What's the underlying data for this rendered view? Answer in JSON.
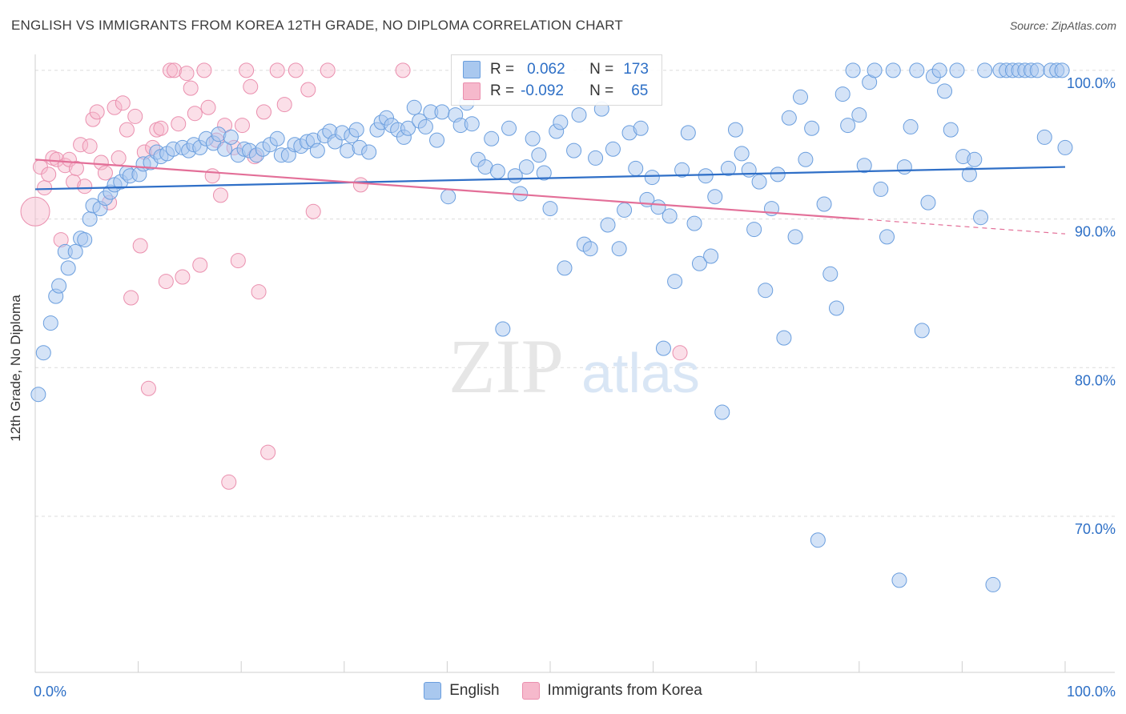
{
  "title": "ENGLISH VS IMMIGRANTS FROM KOREA 12TH GRADE, NO DIPLOMA CORRELATION CHART",
  "source": "Source: ZipAtlas.com",
  "watermark": {
    "zip": "ZIP",
    "atlas": "atlas"
  },
  "colors": {
    "english_fill": "#a9c8ef",
    "english_stroke": "#6a9ede",
    "english_line": "#2f6fc7",
    "korea_fill": "#f6b9cc",
    "korea_stroke": "#ea8fae",
    "korea_line": "#e36f98",
    "axis_label": "#2d6fc6",
    "grid": "#dcdcdc"
  },
  "stats": {
    "english": {
      "r_label": "R =",
      "r_value": "0.062",
      "n_label": "N =",
      "n_value": "173"
    },
    "korea": {
      "r_label": "R =",
      "r_value": "-0.092",
      "n_label": "N =",
      "n_value": "65"
    }
  },
  "legend": {
    "english": "English",
    "korea": "Immigrants from Korea"
  },
  "chart_data": {
    "type": "scatter",
    "xlabel": "",
    "ylabel": "12th Grade, No Diploma",
    "xlim": [
      0,
      100
    ],
    "ylim": [
      59.5,
      101.5
    ],
    "x_tick_labels": [
      "0.0%",
      "100.0%"
    ],
    "y_ticks": [
      {
        "value": 100,
        "label": "100.0%"
      },
      {
        "value": 90,
        "label": "90.0%"
      },
      {
        "value": 80,
        "label": "80.0%"
      },
      {
        "value": 70,
        "label": "70.0%"
      }
    ],
    "grid": true,
    "series": [
      {
        "name": "English",
        "trend": {
          "x0": 0,
          "y0": 92.0,
          "x1": 100,
          "y1": 93.5
        },
        "points": [
          [
            0.3,
            78.2
          ],
          [
            0.8,
            81.0
          ],
          [
            1.5,
            83.0
          ],
          [
            2.0,
            84.8
          ],
          [
            2.3,
            85.5
          ],
          [
            2.9,
            87.8
          ],
          [
            3.2,
            86.7
          ],
          [
            3.9,
            87.8
          ],
          [
            4.4,
            88.7
          ],
          [
            4.8,
            88.6
          ],
          [
            5.3,
            90.0
          ],
          [
            5.6,
            90.9
          ],
          [
            6.3,
            90.7
          ],
          [
            6.8,
            91.4
          ],
          [
            7.3,
            91.8
          ],
          [
            7.7,
            92.3
          ],
          [
            8.3,
            92.5
          ],
          [
            8.9,
            93.1
          ],
          [
            9.2,
            92.9
          ],
          [
            10.1,
            93.0
          ],
          [
            10.5,
            93.7
          ],
          [
            11.2,
            93.8
          ],
          [
            11.8,
            94.5
          ],
          [
            12.2,
            94.2
          ],
          [
            12.8,
            94.4
          ],
          [
            13.4,
            94.7
          ],
          [
            14.3,
            94.8
          ],
          [
            14.9,
            94.6
          ],
          [
            15.4,
            95.0
          ],
          [
            16.0,
            94.8
          ],
          [
            16.6,
            95.4
          ],
          [
            17.3,
            95.1
          ],
          [
            17.8,
            95.7
          ],
          [
            18.4,
            94.7
          ],
          [
            19.0,
            95.5
          ],
          [
            19.7,
            94.3
          ],
          [
            20.3,
            94.7
          ],
          [
            20.8,
            94.6
          ],
          [
            21.5,
            94.3
          ],
          [
            22.1,
            94.7
          ],
          [
            22.8,
            95.0
          ],
          [
            23.5,
            95.4
          ],
          [
            23.9,
            94.3
          ],
          [
            24.6,
            94.3
          ],
          [
            25.2,
            95.0
          ],
          [
            25.8,
            94.9
          ],
          [
            26.4,
            95.2
          ],
          [
            27.0,
            95.3
          ],
          [
            27.4,
            94.6
          ],
          [
            28.1,
            95.6
          ],
          [
            28.6,
            95.9
          ],
          [
            29.1,
            95.2
          ],
          [
            29.8,
            95.8
          ],
          [
            30.3,
            94.6
          ],
          [
            30.7,
            95.6
          ],
          [
            31.2,
            96.0
          ],
          [
            31.5,
            94.8
          ],
          [
            32.4,
            94.5
          ],
          [
            33.2,
            96.0
          ],
          [
            33.6,
            96.5
          ],
          [
            34.1,
            96.8
          ],
          [
            34.6,
            96.3
          ],
          [
            35.2,
            96.0
          ],
          [
            35.8,
            95.5
          ],
          [
            36.2,
            96.1
          ],
          [
            36.8,
            97.5
          ],
          [
            37.3,
            96.6
          ],
          [
            37.9,
            96.2
          ],
          [
            38.4,
            97.2
          ],
          [
            39.0,
            95.3
          ],
          [
            39.5,
            97.2
          ],
          [
            40.1,
            91.5
          ],
          [
            40.8,
            97.0
          ],
          [
            41.3,
            96.3
          ],
          [
            41.9,
            97.8
          ],
          [
            42.4,
            96.4
          ],
          [
            43.0,
            94.0
          ],
          [
            43.7,
            93.5
          ],
          [
            44.3,
            95.4
          ],
          [
            44.9,
            93.2
          ],
          [
            45.4,
            82.6
          ],
          [
            46.0,
            96.1
          ],
          [
            46.6,
            92.9
          ],
          [
            47.1,
            91.7
          ],
          [
            47.7,
            93.5
          ],
          [
            48.3,
            95.4
          ],
          [
            48.9,
            94.3
          ],
          [
            49.4,
            93.1
          ],
          [
            50.0,
            90.7
          ],
          [
            50.6,
            95.9
          ],
          [
            51.0,
            96.5
          ],
          [
            51.4,
            86.7
          ],
          [
            52.3,
            94.6
          ],
          [
            52.8,
            97.0
          ],
          [
            53.3,
            88.3
          ],
          [
            53.9,
            88.0
          ],
          [
            54.4,
            94.1
          ],
          [
            55.0,
            97.4
          ],
          [
            55.6,
            89.6
          ],
          [
            56.1,
            94.7
          ],
          [
            56.7,
            88.0
          ],
          [
            57.2,
            90.6
          ],
          [
            57.7,
            95.8
          ],
          [
            58.3,
            93.4
          ],
          [
            58.8,
            96.1
          ],
          [
            59.4,
            91.3
          ],
          [
            59.9,
            92.8
          ],
          [
            60.5,
            90.8
          ],
          [
            61.0,
            81.3
          ],
          [
            61.6,
            90.2
          ],
          [
            62.1,
            85.8
          ],
          [
            62.8,
            93.3
          ],
          [
            63.4,
            95.8
          ],
          [
            64.0,
            89.7
          ],
          [
            64.5,
            87.0
          ],
          [
            65.1,
            92.9
          ],
          [
            65.6,
            87.5
          ],
          [
            66.0,
            91.5
          ],
          [
            66.7,
            77.0
          ],
          [
            67.3,
            93.4
          ],
          [
            68.0,
            96.0
          ],
          [
            68.6,
            94.4
          ],
          [
            69.3,
            93.3
          ],
          [
            69.8,
            89.3
          ],
          [
            70.3,
            92.5
          ],
          [
            70.9,
            85.2
          ],
          [
            71.5,
            90.7
          ],
          [
            72.1,
            93.0
          ],
          [
            72.7,
            82.0
          ],
          [
            73.2,
            96.8
          ],
          [
            73.8,
            88.8
          ],
          [
            74.3,
            98.2
          ],
          [
            74.8,
            94.0
          ],
          [
            75.4,
            96.1
          ],
          [
            76.0,
            68.4
          ],
          [
            76.6,
            91.0
          ],
          [
            77.2,
            86.3
          ],
          [
            77.8,
            84.0
          ],
          [
            78.4,
            98.4
          ],
          [
            78.9,
            96.3
          ],
          [
            79.4,
            100.0
          ],
          [
            80.0,
            97.0
          ],
          [
            80.5,
            93.6
          ],
          [
            81.0,
            99.2
          ],
          [
            81.5,
            100.0
          ],
          [
            82.1,
            92.0
          ],
          [
            82.7,
            88.8
          ],
          [
            83.3,
            100.0
          ],
          [
            83.9,
            65.7
          ],
          [
            84.4,
            93.5
          ],
          [
            85.0,
            96.2
          ],
          [
            85.6,
            100.0
          ],
          [
            86.1,
            82.5
          ],
          [
            86.7,
            91.1
          ],
          [
            87.2,
            99.6
          ],
          [
            87.8,
            100.0
          ],
          [
            88.3,
            98.6
          ],
          [
            88.9,
            96.0
          ],
          [
            89.5,
            100.0
          ],
          [
            90.1,
            94.2
          ],
          [
            90.7,
            93.0
          ],
          [
            91.2,
            94.0
          ],
          [
            91.8,
            90.1
          ],
          [
            92.2,
            100.0
          ],
          [
            93.0,
            65.4
          ],
          [
            93.7,
            100.0
          ],
          [
            94.3,
            100.0
          ],
          [
            94.9,
            100.0
          ],
          [
            95.5,
            100.0
          ],
          [
            96.1,
            100.0
          ],
          [
            96.7,
            100.0
          ],
          [
            97.3,
            100.0
          ],
          [
            98.0,
            95.5
          ],
          [
            98.6,
            100.0
          ],
          [
            99.2,
            100.0
          ],
          [
            99.7,
            100.0
          ],
          [
            100.0,
            94.8
          ]
        ]
      },
      {
        "name": "Immigrants from Korea",
        "trend": {
          "x0": 0,
          "y0": 94.0,
          "x1": 80,
          "y1": 90.0
        },
        "points": [
          [
            0.0,
            90.5
          ],
          [
            0.5,
            93.5
          ],
          [
            0.9,
            92.1
          ],
          [
            1.3,
            93.0
          ],
          [
            1.7,
            94.1
          ],
          [
            2.1,
            94.0
          ],
          [
            2.5,
            88.6
          ],
          [
            2.9,
            93.6
          ],
          [
            3.3,
            94.0
          ],
          [
            3.7,
            92.5
          ],
          [
            4.0,
            93.4
          ],
          [
            4.4,
            95.0
          ],
          [
            4.8,
            92.2
          ],
          [
            5.3,
            94.9
          ],
          [
            5.6,
            96.7
          ],
          [
            6.0,
            97.2
          ],
          [
            6.4,
            93.8
          ],
          [
            6.8,
            93.1
          ],
          [
            7.2,
            91.1
          ],
          [
            7.7,
            97.5
          ],
          [
            8.1,
            94.1
          ],
          [
            8.5,
            97.8
          ],
          [
            8.9,
            96.0
          ],
          [
            9.3,
            84.7
          ],
          [
            9.7,
            96.9
          ],
          [
            10.2,
            88.2
          ],
          [
            10.6,
            94.5
          ],
          [
            11.0,
            78.6
          ],
          [
            11.4,
            94.8
          ],
          [
            11.8,
            96.0
          ],
          [
            12.2,
            96.1
          ],
          [
            12.7,
            85.8
          ],
          [
            13.1,
            100.0
          ],
          [
            13.5,
            100.0
          ],
          [
            13.9,
            96.4
          ],
          [
            14.3,
            86.1
          ],
          [
            14.7,
            99.8
          ],
          [
            15.1,
            98.8
          ],
          [
            15.5,
            97.1
          ],
          [
            16.0,
            86.9
          ],
          [
            16.4,
            100.0
          ],
          [
            16.8,
            97.5
          ],
          [
            17.2,
            92.9
          ],
          [
            17.6,
            95.3
          ],
          [
            18.0,
            91.6
          ],
          [
            18.4,
            96.3
          ],
          [
            18.8,
            72.3
          ],
          [
            19.3,
            94.8
          ],
          [
            19.7,
            87.2
          ],
          [
            20.1,
            96.3
          ],
          [
            20.5,
            100.0
          ],
          [
            20.9,
            98.9
          ],
          [
            21.3,
            94.2
          ],
          [
            21.7,
            85.1
          ],
          [
            22.2,
            97.2
          ],
          [
            22.6,
            74.3
          ],
          [
            23.5,
            100.0
          ],
          [
            24.2,
            97.7
          ],
          [
            25.3,
            100.0
          ],
          [
            26.5,
            98.7
          ],
          [
            27.0,
            90.5
          ],
          [
            28.4,
            100.0
          ],
          [
            31.6,
            92.3
          ],
          [
            35.7,
            100.0
          ],
          [
            62.6,
            81.0
          ]
        ]
      }
    ]
  }
}
